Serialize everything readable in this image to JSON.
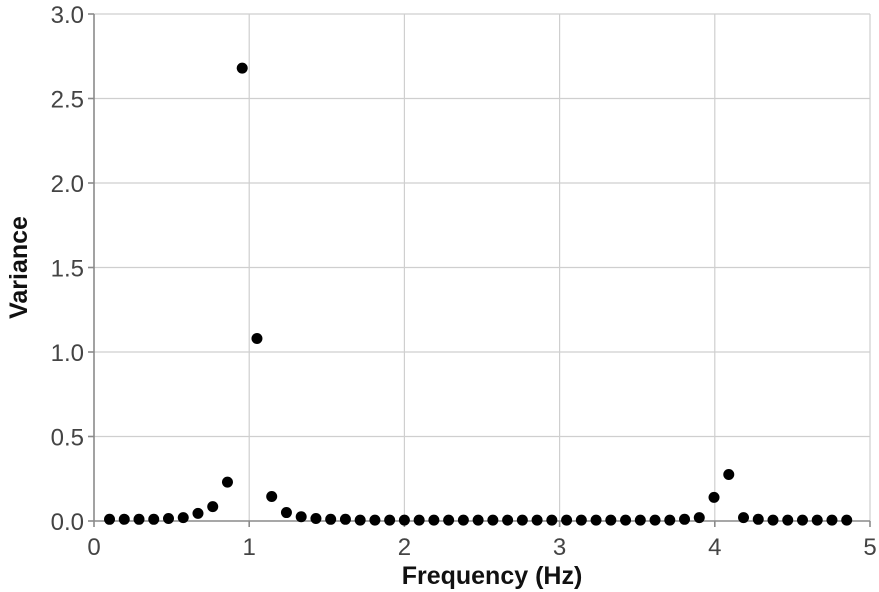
{
  "chart_data": {
    "type": "scatter",
    "title": "",
    "xlabel": "Frequency (Hz)",
    "ylabel": "Variance",
    "xlim": [
      0,
      5
    ],
    "ylim": [
      0,
      3
    ],
    "x_ticks": [
      "0",
      "1",
      "2",
      "3",
      "4",
      "5"
    ],
    "y_ticks": [
      "0.0",
      "0.5",
      "1.0",
      "1.5",
      "2.0",
      "2.5",
      "3.0"
    ],
    "x_tick_values": [
      0,
      1,
      2,
      3,
      4,
      5
    ],
    "y_tick_values": [
      0,
      0.5,
      1,
      1.5,
      2,
      2.5,
      3
    ],
    "grid": true,
    "legend": "none",
    "marker_color": "#000000",
    "series": [
      {
        "x": [
          0.1,
          0.195,
          0.29,
          0.385,
          0.48,
          0.575,
          0.67,
          0.765,
          0.86,
          0.955,
          1.05,
          1.145,
          1.24,
          1.335,
          1.43,
          1.525,
          1.62,
          1.715,
          1.81,
          1.905,
          2.0,
          2.095,
          2.19,
          2.285,
          2.38,
          2.475,
          2.57,
          2.665,
          2.76,
          2.855,
          2.95,
          3.045,
          3.14,
          3.235,
          3.33,
          3.425,
          3.52,
          3.615,
          3.71,
          3.805,
          3.9,
          3.995,
          4.09,
          4.185,
          4.28,
          4.375,
          4.47,
          4.565,
          4.66,
          4.755,
          4.85
        ],
        "y": [
          0.01,
          0.01,
          0.01,
          0.01,
          0.015,
          0.02,
          0.045,
          0.085,
          0.23,
          2.68,
          1.08,
          0.145,
          0.05,
          0.025,
          0.015,
          0.01,
          0.01,
          0.005,
          0.005,
          0.005,
          0.005,
          0.005,
          0.005,
          0.005,
          0.005,
          0.005,
          0.005,
          0.005,
          0.005,
          0.005,
          0.005,
          0.005,
          0.005,
          0.005,
          0.005,
          0.005,
          0.005,
          0.005,
          0.005,
          0.01,
          0.02,
          0.14,
          0.275,
          0.02,
          0.01,
          0.005,
          0.005,
          0.005,
          0.005,
          0.005,
          0.005
        ]
      }
    ]
  }
}
